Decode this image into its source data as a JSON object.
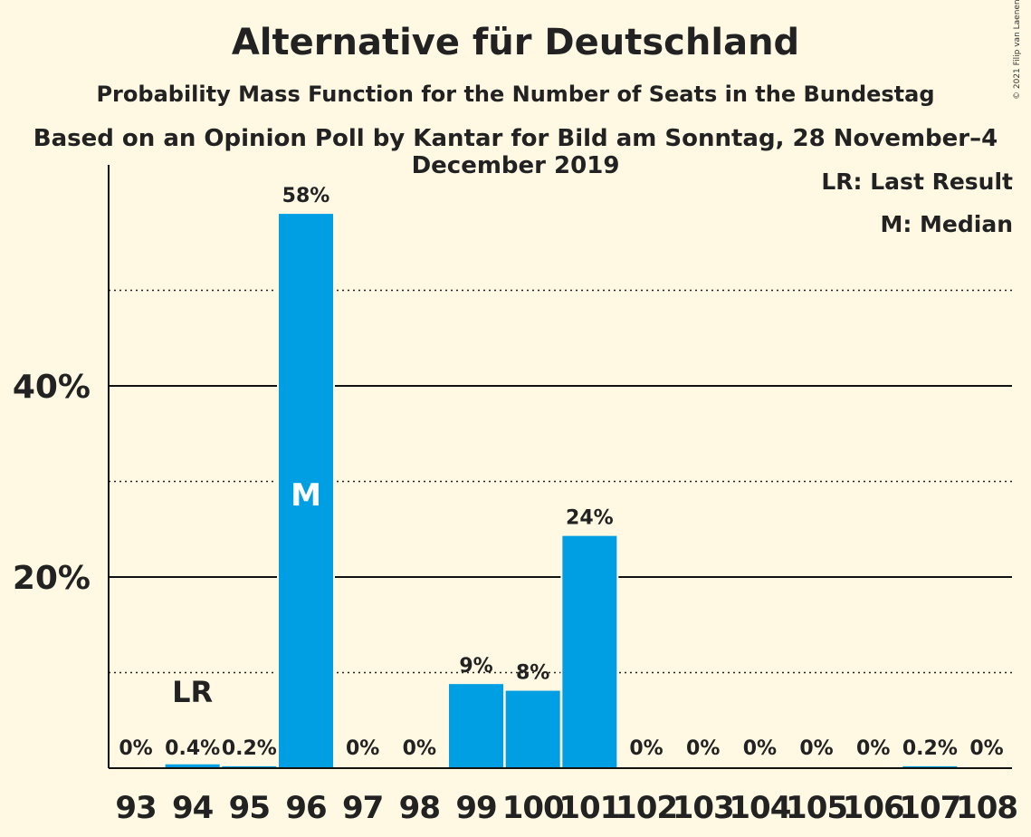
{
  "title": "Alternative für Deutschland",
  "subtitle": "Probability Mass Function for the Number of Seats in the Bundestag",
  "subtitle2": "Based on an Opinion Poll by Kantar for Bild am Sonntag, 28 November–4 December 2019",
  "copyright": "© 2021 Filip van Laenen",
  "legend": {
    "last_result": "LR: Last Result",
    "median": "M: Median"
  },
  "colors": {
    "bar": "#009fe3",
    "background": "#fff8e2",
    "text": "#222222"
  },
  "chart_data": {
    "type": "bar",
    "categories": [
      "93",
      "94",
      "95",
      "96",
      "97",
      "98",
      "99",
      "100",
      "101",
      "102",
      "103",
      "104",
      "105",
      "106",
      "107",
      "108"
    ],
    "values": [
      0,
      0.4,
      0.2,
      58,
      0,
      0,
      8.8,
      8.1,
      24.3,
      0,
      0,
      0,
      0,
      0,
      0.2,
      0
    ],
    "data_labels": [
      "0%",
      "0.4%",
      "0.2%",
      "58%",
      "0%",
      "0%",
      "9%",
      "8%",
      "24%",
      "0%",
      "0%",
      "0%",
      "0%",
      "0%",
      "0.2%",
      "0%"
    ],
    "ylim": [
      0,
      63
    ],
    "y_ticks": [
      {
        "value": 20,
        "label": "20%"
      },
      {
        "value": 40,
        "label": "40%"
      }
    ],
    "dotted_gridlines": [
      10,
      30,
      50
    ],
    "solid_gridlines": [
      20,
      40
    ],
    "last_result": {
      "category": "94",
      "label": "LR"
    },
    "median": {
      "category": "96",
      "label": "M"
    }
  }
}
